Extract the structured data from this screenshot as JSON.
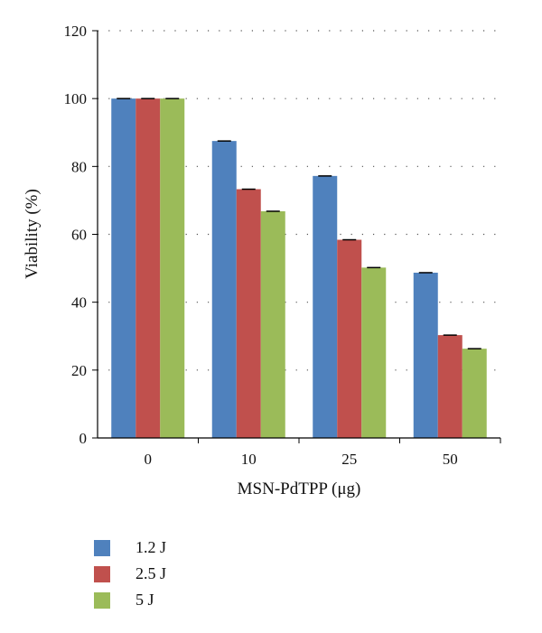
{
  "chart_data": {
    "type": "bar",
    "categories": [
      "0",
      "10",
      "25",
      "50"
    ],
    "series": [
      {
        "name": "1.2 J",
        "values": [
          100,
          87.5,
          77.2,
          48.7
        ],
        "color": "#4f81bd"
      },
      {
        "name": "2.5 J",
        "values": [
          100,
          73.3,
          58.4,
          30.3
        ],
        "color": "#c0504d"
      },
      {
        "name": "5 J",
        "values": [
          100,
          66.8,
          50.2,
          26.3
        ],
        "color": "#9bbb59"
      }
    ],
    "xlabel": "MSN-PdTPP (μg)",
    "ylabel": "Viability (%)",
    "ylim": [
      0,
      120
    ],
    "yticks": [
      0,
      20,
      40,
      60,
      80,
      100,
      120
    ],
    "grid": true,
    "legend_position": "bottom-left"
  }
}
